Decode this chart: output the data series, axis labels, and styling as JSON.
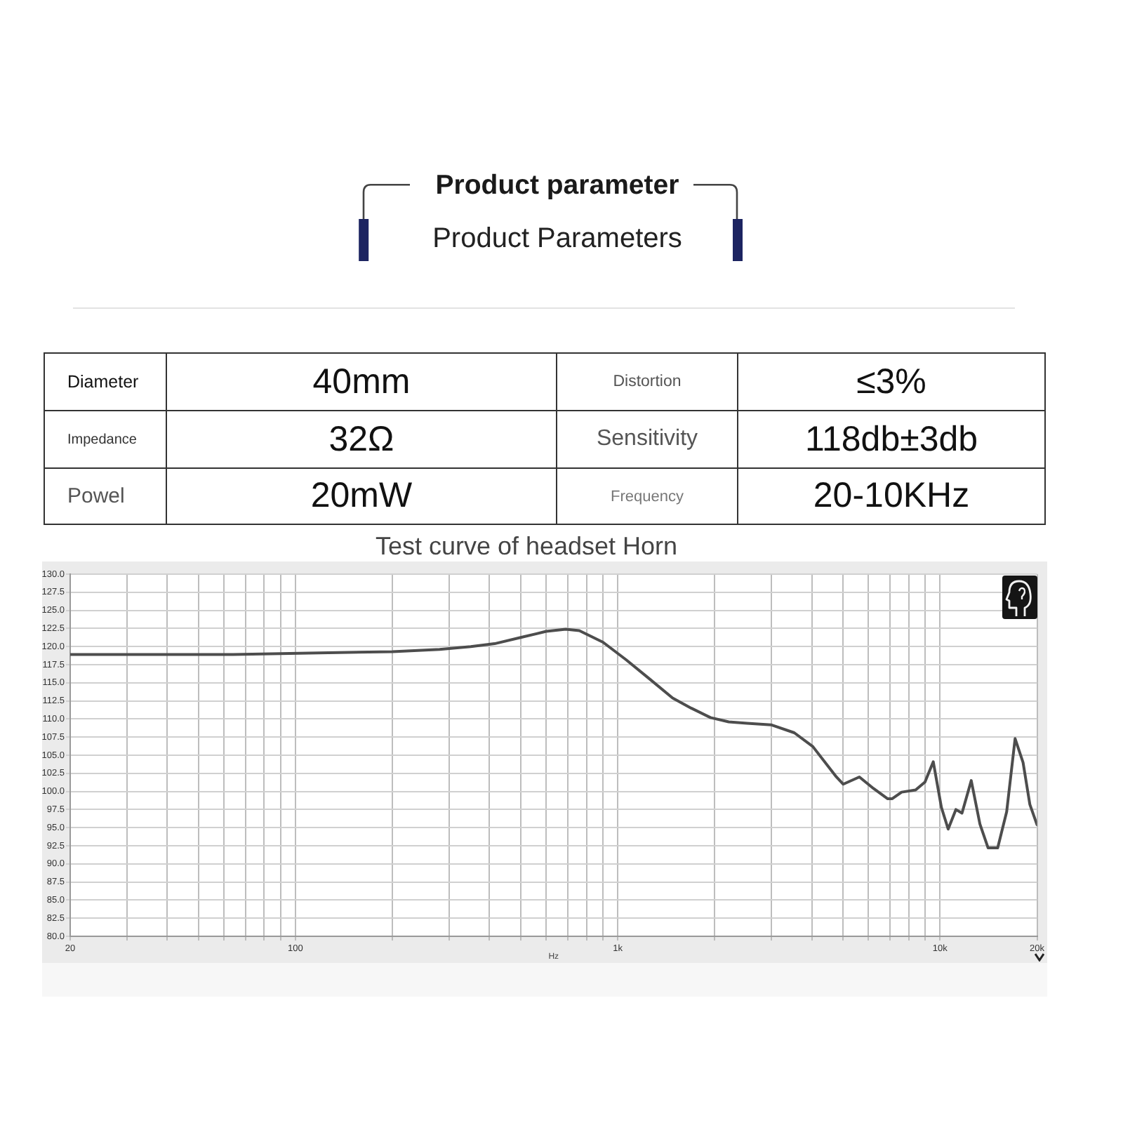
{
  "chart_data": [
    {
      "type": "other",
      "title": "Product parameter",
      "subtitle": "Product Parameters",
      "annotations": [
        "Diameter",
        "40mm",
        "Distortion",
        "≤3%",
        "Impedance",
        "32Ω",
        "Sensitivity",
        "118db±3db",
        "Powel",
        "20mW",
        "Frequency",
        "20-10KHz"
      ]
    },
    {
      "type": "line",
      "title": "Test curve of headset Horn",
      "xlabel": "Hz",
      "x": [
        20,
        64,
        110,
        200,
        280,
        350,
        415,
        505,
        600,
        690,
        760,
        900,
        1060,
        1250,
        1480,
        1690,
        1940,
        2210,
        2520,
        2990,
        3530,
        4030,
        4770,
        5010,
        5620,
        6220,
        6870,
        7110,
        7600,
        8400,
        8980,
        9530,
        10100,
        10600,
        11200,
        11700,
        12500,
        13300,
        14100,
        15100,
        16100,
        17100,
        18100,
        19000,
        20000
      ],
      "values": [
        118.9,
        118.9,
        119.1,
        119.3,
        119.6,
        120.0,
        120.4,
        121.3,
        122.1,
        122.4,
        122.2,
        120.6,
        118.2,
        115.6,
        112.9,
        111.5,
        110.2,
        109.6,
        109.4,
        109.2,
        108.1,
        106.2,
        102.0,
        101.0,
        102.0,
        100.4,
        99.0,
        99.0,
        99.9,
        100.2,
        101.3,
        104.1,
        97.8,
        94.8,
        97.5,
        97.0,
        101.5,
        95.5,
        92.2,
        92.2,
        97.2,
        107.3,
        104.0,
        98.2,
        95.4
      ],
      "color": "#4d4d4d",
      "xlim": [
        20,
        20000
      ],
      "ylim": [
        80,
        130
      ],
      "xticks": [
        20,
        {
          "value": 30,
          "label": null
        },
        {
          "value": 40,
          "label": null
        },
        {
          "value": 50,
          "label": null
        },
        {
          "value": 60,
          "label": null
        },
        {
          "value": 70,
          "label": null
        },
        {
          "value": 80,
          "label": null
        },
        {
          "value": 90,
          "label": null
        },
        100,
        {
          "value": 200,
          "label": null
        },
        {
          "value": 300,
          "label": null
        },
        {
          "value": 400,
          "label": null
        },
        {
          "value": 500,
          "label": null
        },
        {
          "value": 600,
          "label": null
        },
        {
          "value": 700,
          "label": null
        },
        {
          "value": 800,
          "label": null
        },
        {
          "value": 900,
          "label": null
        },
        {
          "value": 1000,
          "label": "1k"
        },
        {
          "value": 2000,
          "label": null
        },
        {
          "value": 3000,
          "label": null
        },
        {
          "value": 4000,
          "label": null
        },
        {
          "value": 5000,
          "label": null
        },
        {
          "value": 6000,
          "label": null
        },
        {
          "value": 7000,
          "label": null
        },
        {
          "value": 8000,
          "label": null
        },
        {
          "value": 9000,
          "label": null
        },
        {
          "value": 10000,
          "label": "10k"
        },
        {
          "value": 20000,
          "label": "20k"
        }
      ],
      "yticks": [
        {
          "value": 80,
          "label": "80.0"
        },
        82.5,
        {
          "value": 85,
          "label": "85.0"
        },
        87.5,
        {
          "value": 90,
          "label": "90.0"
        },
        92.5,
        {
          "value": 95,
          "label": "95.0"
        },
        97.5,
        {
          "value": 100,
          "label": "100.0"
        },
        102.5,
        {
          "value": 105,
          "label": "105.0"
        },
        107.5,
        {
          "value": 110,
          "label": "110.0"
        },
        112.5,
        {
          "value": 115,
          "label": "115.0"
        },
        117.5,
        {
          "value": 120,
          "label": "120.0"
        },
        122.5,
        {
          "value": 125,
          "label": "125.0"
        },
        127.5,
        {
          "value": 130,
          "label": "130.0"
        }
      ],
      "log": "x",
      "grid": true
    }
  ]
}
